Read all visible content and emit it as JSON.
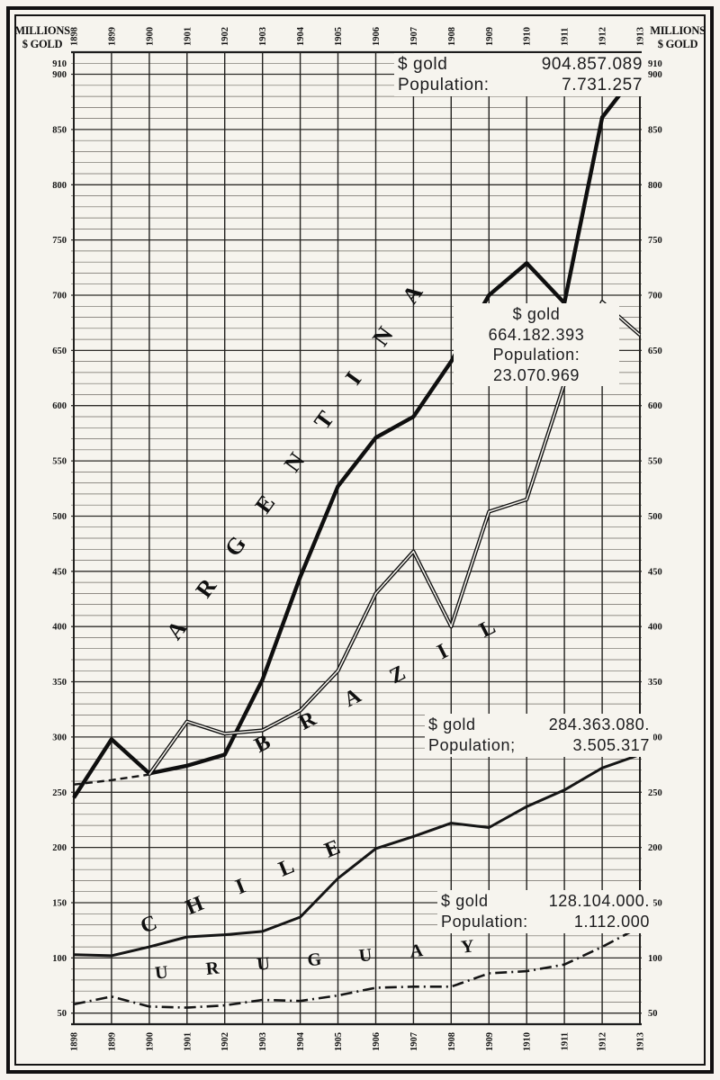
{
  "page": {
    "corner_label_line1": "MILLIONS",
    "corner_label_line2": "$ GOLD"
  },
  "chart_data": {
    "type": "line",
    "unit": "millions of dollars gold",
    "x": [
      1898,
      1899,
      1900,
      1901,
      1902,
      1903,
      1904,
      1905,
      1906,
      1907,
      1908,
      1909,
      1910,
      1911,
      1912,
      1913
    ],
    "x_labels": [
      "1898",
      "1899",
      "1900",
      "1901",
      "1902",
      "1903",
      "1904",
      "1905",
      "1906",
      "1907",
      "1908",
      "1909",
      "1910",
      "1911",
      "1912",
      "1913"
    ],
    "y_ticks": [
      910,
      900,
      850,
      800,
      750,
      700,
      650,
      600,
      550,
      500,
      450,
      400,
      350,
      300,
      250,
      200,
      150,
      100,
      50
    ],
    "ylim": [
      40,
      920
    ],
    "grid": true,
    "legend_position": "labels-along-lines",
    "series": [
      {
        "name": "ARGENTINA",
        "style": "solid-thick",
        "values": [
          245,
          298,
          267,
          274,
          284,
          352,
          445,
          527,
          571,
          590,
          640,
          700,
          729,
          693,
          861,
          905
        ]
      },
      {
        "name": "BRAZIL",
        "style": "double-line",
        "dashed_until_index": 2,
        "values": [
          257,
          261,
          266,
          314,
          303,
          306,
          324,
          360,
          430,
          468,
          400,
          504,
          515,
          620,
          694,
          664
        ]
      },
      {
        "name": "CHILE",
        "style": "solid",
        "values": [
          103,
          102,
          110,
          119,
          121,
          124,
          137,
          172,
          199,
          210,
          222,
          218,
          237,
          252,
          272,
          284
        ]
      },
      {
        "name": "URUGUAY",
        "style": "dash-dot",
        "values": [
          58,
          65,
          56,
          55,
          57,
          62,
          61,
          66,
          73,
          74,
          74,
          86,
          88,
          94,
          110,
          128
        ]
      }
    ],
    "annotations": [
      {
        "series": "ARGENTINA",
        "rows": [
          {
            "label": "$ gold",
            "value": "904.857.089"
          },
          {
            "label": "Population:",
            "value": "7.731.257"
          }
        ]
      },
      {
        "series": "BRAZIL",
        "lines": [
          "$ gold",
          "664.182.393",
          "Population:",
          "23.070.969"
        ]
      },
      {
        "series": "CHILE",
        "rows": [
          {
            "label": "$ gold",
            "value": "284.363.080."
          },
          {
            "label": "Population;",
            "value": "3.505.317"
          }
        ]
      },
      {
        "series": "URUGUAY",
        "rows": [
          {
            "label": "$ gold",
            "value": "128.104.000."
          },
          {
            "label": "Population:",
            "value": "1.112.000"
          }
        ]
      }
    ]
  }
}
